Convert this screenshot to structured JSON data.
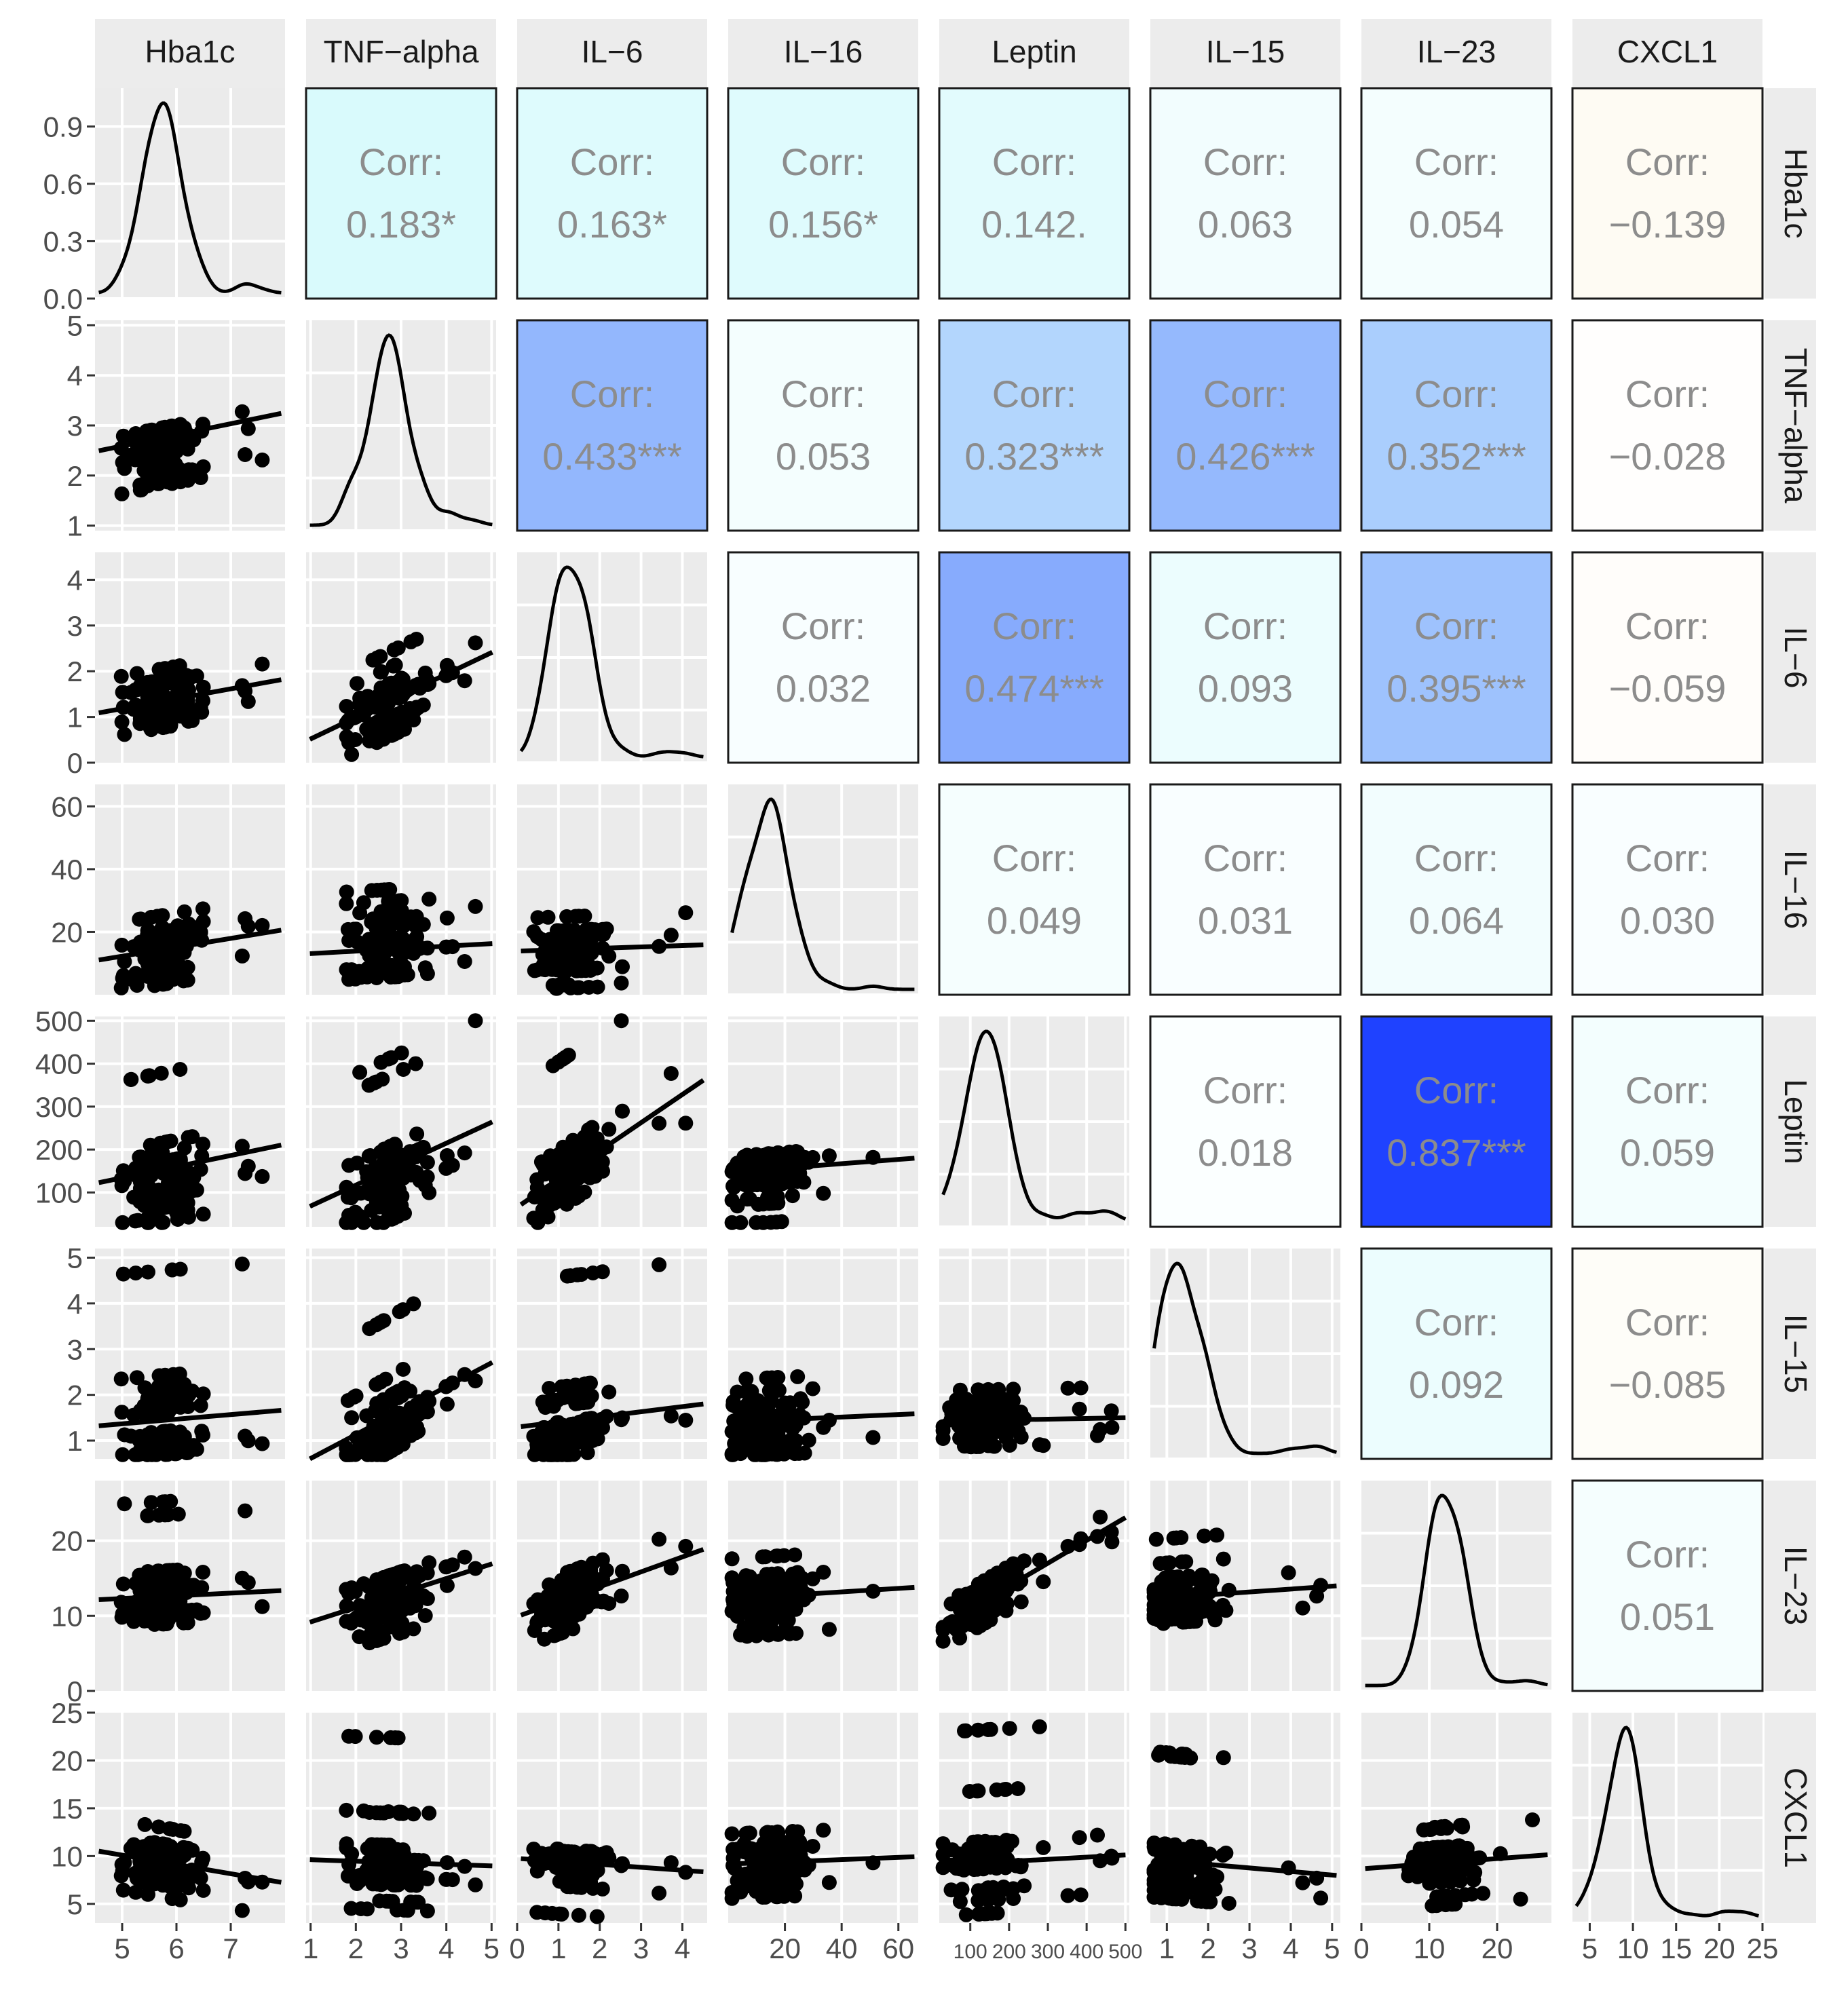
{
  "chart_data": {
    "type": "scatter",
    "variables": [
      "Hba1c",
      "TNF−alpha",
      "IL−6",
      "IL−16",
      "Leptin",
      "IL−15",
      "IL−23",
      "CXCL1"
    ],
    "corr_label": "Corr:",
    "correlations": [
      {
        "row": "Hba1c",
        "col": "TNF−alpha",
        "value": 0.183,
        "text": "0.183*"
      },
      {
        "row": "Hba1c",
        "col": "IL−6",
        "value": 0.163,
        "text": "0.163*"
      },
      {
        "row": "Hba1c",
        "col": "IL−16",
        "value": 0.156,
        "text": "0.156*"
      },
      {
        "row": "Hba1c",
        "col": "Leptin",
        "value": 0.142,
        "text": "0.142."
      },
      {
        "row": "Hba1c",
        "col": "IL−15",
        "value": 0.063,
        "text": "0.063"
      },
      {
        "row": "Hba1c",
        "col": "IL−23",
        "value": 0.054,
        "text": "0.054"
      },
      {
        "row": "Hba1c",
        "col": "CXCL1",
        "value": -0.139,
        "text": "−0.139"
      },
      {
        "row": "TNF−alpha",
        "col": "IL−6",
        "value": 0.433,
        "text": "0.433***"
      },
      {
        "row": "TNF−alpha",
        "col": "IL−16",
        "value": 0.053,
        "text": "0.053"
      },
      {
        "row": "TNF−alpha",
        "col": "Leptin",
        "value": 0.323,
        "text": "0.323***"
      },
      {
        "row": "TNF−alpha",
        "col": "IL−15",
        "value": 0.426,
        "text": "0.426***"
      },
      {
        "row": "TNF−alpha",
        "col": "IL−23",
        "value": 0.352,
        "text": "0.352***"
      },
      {
        "row": "TNF−alpha",
        "col": "CXCL1",
        "value": -0.028,
        "text": "−0.028"
      },
      {
        "row": "IL−6",
        "col": "IL−16",
        "value": 0.032,
        "text": "0.032"
      },
      {
        "row": "IL−6",
        "col": "Leptin",
        "value": 0.474,
        "text": "0.474***"
      },
      {
        "row": "IL−6",
        "col": "IL−15",
        "value": 0.093,
        "text": "0.093"
      },
      {
        "row": "IL−6",
        "col": "IL−23",
        "value": 0.395,
        "text": "0.395***"
      },
      {
        "row": "IL−6",
        "col": "CXCL1",
        "value": -0.059,
        "text": "−0.059"
      },
      {
        "row": "IL−16",
        "col": "Leptin",
        "value": 0.049,
        "text": "0.049"
      },
      {
        "row": "IL−16",
        "col": "IL−15",
        "value": 0.031,
        "text": "0.031"
      },
      {
        "row": "IL−16",
        "col": "IL−23",
        "value": 0.064,
        "text": "0.064"
      },
      {
        "row": "IL−16",
        "col": "CXCL1",
        "value": 0.03,
        "text": "0.030"
      },
      {
        "row": "Leptin",
        "col": "IL−15",
        "value": 0.018,
        "text": "0.018"
      },
      {
        "row": "Leptin",
        "col": "IL−23",
        "value": 0.837,
        "text": "0.837***"
      },
      {
        "row": "Leptin",
        "col": "CXCL1",
        "value": 0.059,
        "text": "0.059"
      },
      {
        "row": "IL−15",
        "col": "IL−23",
        "value": 0.092,
        "text": "0.092"
      },
      {
        "row": "IL−15",
        "col": "CXCL1",
        "value": -0.085,
        "text": "−0.085"
      },
      {
        "row": "IL−23",
        "col": "CXCL1",
        "value": 0.051,
        "text": "0.051"
      }
    ],
    "axes": {
      "Hba1c": {
        "range": [
          4.5,
          8.0
        ],
        "ticks": [
          5,
          6,
          7
        ],
        "density_ylim": [
          0,
          1.1
        ],
        "density_ticks": [
          0.0,
          0.3,
          0.6,
          0.9
        ],
        "density_tick_labels": [
          "0.0",
          "0.3",
          "0.6",
          "0.9"
        ]
      },
      "TNF−alpha": {
        "range": [
          0.9,
          5.1
        ],
        "ticks": [
          1,
          2,
          3,
          4,
          5
        ]
      },
      "IL−6": {
        "range": [
          0,
          4.6
        ],
        "ticks": [
          0,
          1,
          2,
          3,
          4
        ]
      },
      "IL−16": {
        "range": [
          0,
          67
        ],
        "ticks": [
          20,
          40,
          60
        ]
      },
      "Leptin": {
        "range": [
          20,
          510
        ],
        "ticks": [
          100,
          200,
          300,
          400,
          500
        ]
      },
      "IL−15": {
        "range": [
          0.6,
          5.2
        ],
        "ticks": [
          1,
          2,
          3,
          4,
          5
        ]
      },
      "IL−23": {
        "range": [
          0,
          28
        ],
        "ticks": [
          0,
          10,
          20
        ]
      },
      "CXCL1": {
        "range": [
          3,
          25
        ],
        "ticks": [
          5,
          10,
          15,
          20,
          25
        ]
      }
    },
    "density_peaks": {
      "Hba1c": 5.6,
      "TNF−alpha": 2.5,
      "IL−6": 1.1,
      "IL−16": 11,
      "Leptin": 120,
      "IL−15": 1.2,
      "IL−23": 11,
      "CXCL1": 8
    },
    "grid": true,
    "legend": "none"
  }
}
